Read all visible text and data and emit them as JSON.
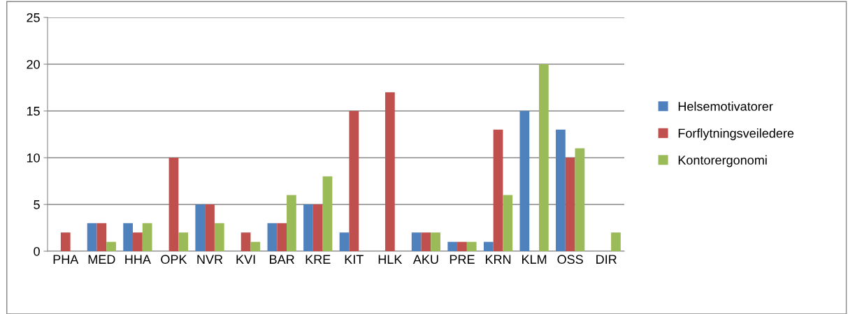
{
  "chart_data": {
    "type": "bar",
    "categories": [
      "PHA",
      "MED",
      "HHA",
      "OPK",
      "NVR",
      "KVI",
      "BAR",
      "KRE",
      "KIT",
      "HLK",
      "AKU",
      "PRE",
      "KRN",
      "KLM",
      "OSS",
      "DIR"
    ],
    "series": [
      {
        "name": "Helsemotivatorer",
        "color": "#4f81bd",
        "values": [
          0,
          3,
          3,
          0,
          5,
          0,
          3,
          5,
          2,
          0,
          2,
          1,
          1,
          15,
          13,
          0
        ]
      },
      {
        "name": "Forflytningsveiledere",
        "color": "#c0504d",
        "values": [
          2,
          3,
          2,
          10,
          5,
          2,
          3,
          5,
          15,
          17,
          2,
          1,
          13,
          0,
          10,
          0
        ]
      },
      {
        "name": "Kontorergonomi",
        "color": "#9bbb59",
        "values": [
          0,
          1,
          3,
          2,
          3,
          1,
          6,
          8,
          0,
          0,
          2,
          1,
          6,
          20,
          11,
          2
        ]
      }
    ],
    "ylim": [
      0,
      25
    ],
    "yticks": [
      0,
      5,
      10,
      15,
      20,
      25
    ],
    "grid": "y",
    "legend": "right"
  }
}
